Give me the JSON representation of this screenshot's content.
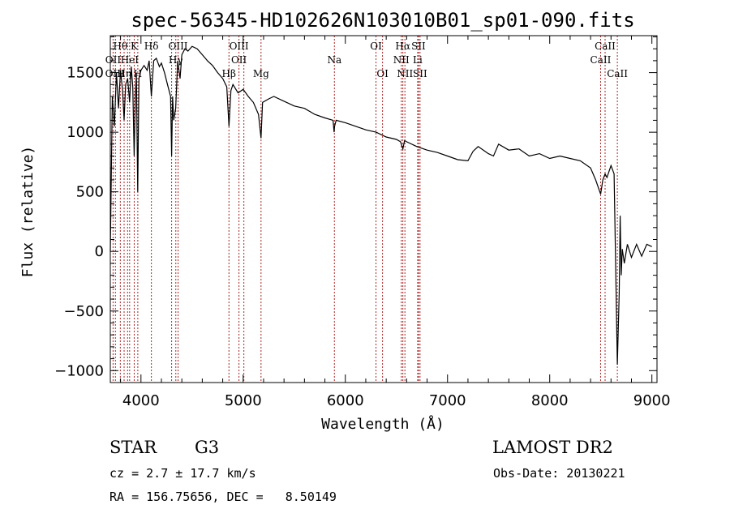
{
  "chart_data": {
    "type": "line",
    "title": "spec-56345-HD102626N103010B01_sp01-090.fits",
    "xlabel": "Wavelength (Å)",
    "ylabel": "Flux (relative)",
    "xlim": [
      3700,
      9050
    ],
    "ylim": [
      -1100,
      1810
    ],
    "x_ticks": [
      4000,
      5000,
      6000,
      7000,
      8000,
      9000
    ],
    "y_ticks": [
      -1000,
      -500,
      0,
      500,
      1000,
      1500
    ],
    "grid": false,
    "legend": "none",
    "line_color": "#000000",
    "marker_line_color": "#b22222",
    "series": [
      {
        "x": [
          3700,
          3720,
          3740,
          3760,
          3780,
          3800,
          3820,
          3835,
          3850,
          3870,
          3889,
          3905,
          3920,
          3933,
          3945,
          3955,
          3968,
          3980,
          4000,
          4030,
          4060,
          4080,
          4102,
          4125,
          4150,
          4180,
          4200,
          4230,
          4260,
          4290,
          4300,
          4310,
          4320,
          4340,
          4360,
          4383,
          4400,
          4430,
          4460,
          4500,
          4550,
          4600,
          4650,
          4700,
          4750,
          4800,
          4840,
          4861,
          4880,
          4900,
          4950,
          5000,
          5050,
          5100,
          5150,
          5175,
          5190,
          5250,
          5300,
          5400,
          5500,
          5600,
          5700,
          5800,
          5880,
          5890,
          5895,
          5910,
          6000,
          6100,
          6200,
          6300,
          6400,
          6500,
          6540,
          6563,
          6580,
          6600,
          6700,
          6800,
          6900,
          7000,
          7100,
          7200,
          7250,
          7300,
          7400,
          7450,
          7500,
          7600,
          7700,
          7800,
          7900,
          8000,
          8100,
          8200,
          8300,
          8400,
          8450,
          8498,
          8520,
          8542,
          8560,
          8600,
          8630,
          8662,
          8680,
          8690,
          8700,
          8710,
          8730,
          8760,
          8800,
          8850,
          8900,
          8950,
          9000
        ],
        "y": [
          0,
          1300,
          1050,
          1500,
          1200,
          1520,
          1350,
          1100,
          1400,
          1450,
          1250,
          1550,
          1380,
          800,
          1300,
          1500,
          500,
          1450,
          1520,
          1560,
          1520,
          1600,
          1300,
          1600,
          1620,
          1550,
          1580,
          1500,
          1400,
          1300,
          800,
          1300,
          1100,
          1200,
          1600,
          1450,
          1650,
          1700,
          1680,
          1720,
          1700,
          1650,
          1600,
          1560,
          1500,
          1450,
          1380,
          1050,
          1350,
          1400,
          1330,
          1360,
          1300,
          1250,
          1150,
          950,
          1250,
          1280,
          1300,
          1260,
          1220,
          1200,
          1150,
          1120,
          1100,
          1000,
          1050,
          1100,
          1080,
          1050,
          1020,
          1000,
          960,
          940,
          920,
          860,
          930,
          920,
          880,
          850,
          830,
          800,
          770,
          760,
          840,
          880,
          820,
          800,
          900,
          850,
          860,
          800,
          820,
          780,
          800,
          780,
          760,
          700,
          600,
          480,
          600,
          650,
          620,
          720,
          650,
          -950,
          -350,
          300,
          -200,
          20,
          -100,
          60,
          -50,
          60,
          -40,
          60,
          40
        ]
      }
    ],
    "line_labels": [
      {
        "name": "Hθ",
        "x": 3798,
        "row": 0
      },
      {
        "name": "OII",
        "x": 3727,
        "row": 1
      },
      {
        "name": "OIII",
        "x": 3745,
        "row": 2
      },
      {
        "name": "Hη",
        "x": 3836,
        "row": 2
      },
      {
        "name": "HeI",
        "x": 3889,
        "row": 1
      },
      {
        "name": "K",
        "x": 3934,
        "row": 0
      },
      {
        "name": "H",
        "x": 3969,
        "row": 2
      },
      {
        "name": "Hδ",
        "x": 4102,
        "row": 0
      },
      {
        "name": "OIII",
        "x": 4363,
        "row": 0
      },
      {
        "name": "Hγ",
        "x": 4341,
        "row": 1
      },
      {
        "name": "OIII",
        "x": 4959,
        "row": 0
      },
      {
        "name": "OII",
        "x": 4959,
        "row": 1
      },
      {
        "name": "Hβ",
        "x": 4861,
        "row": 2
      },
      {
        "name": "Mg",
        "x": 5175,
        "row": 2
      },
      {
        "name": "Na",
        "x": 5893,
        "row": 1
      },
      {
        "name": "OI",
        "x": 6300,
        "row": 0
      },
      {
        "name": "OI",
        "x": 6364,
        "row": 2
      },
      {
        "name": "Hα",
        "x": 6563,
        "row": 0
      },
      {
        "name": "NII",
        "x": 6548,
        "row": 1
      },
      {
        "name": "NII",
        "x": 6583,
        "row": 2
      },
      {
        "name": "SII",
        "x": 6716,
        "row": 0
      },
      {
        "name": "Li",
        "x": 6708,
        "row": 1
      },
      {
        "name": "SII",
        "x": 6731,
        "row": 2
      },
      {
        "name": "CaII",
        "x": 8542,
        "row": 0
      },
      {
        "name": "CaII",
        "x": 8498,
        "row": 1
      },
      {
        "name": "CaII",
        "x": 8662,
        "row": 2
      }
    ],
    "marker_lines": [
      3727,
      3750,
      3798,
      3835,
      3869,
      3889,
      3934,
      3969,
      4102,
      4300,
      4341,
      4363,
      4861,
      4959,
      5007,
      5175,
      5893,
      6300,
      6364,
      6548,
      6563,
      6583,
      6708,
      6716,
      6731,
      8498,
      8542,
      8662
    ]
  },
  "info": {
    "object_type": "STAR",
    "subclass": "G3",
    "survey": "LAMOST DR2",
    "redshift": "cz = 2.7 ± 17.7 km/s",
    "obs_date": "Obs-Date: 20130221",
    "coords": "RA = 156.75656, DEC =   8.50149"
  }
}
